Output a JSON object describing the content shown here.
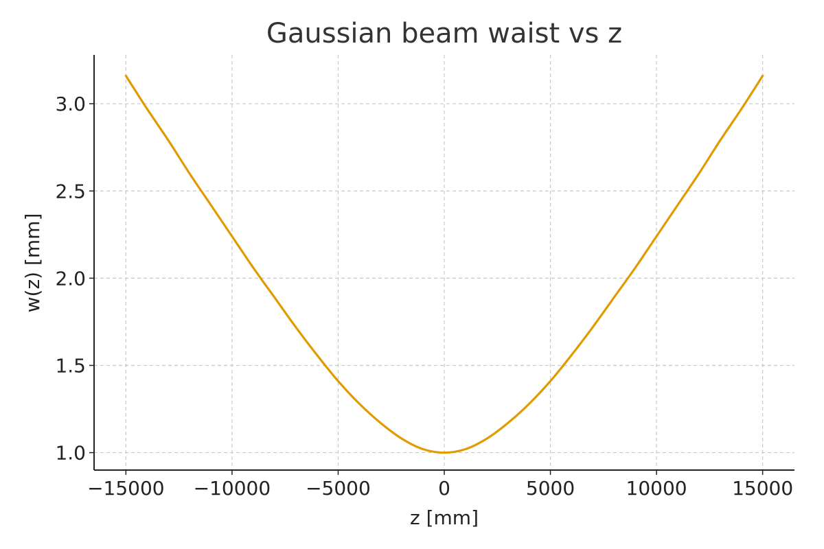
{
  "chart_data": {
    "type": "line",
    "title": "Gaussian beam waist vs z",
    "xlabel": "z [mm]",
    "ylabel": "w(z) [mm]",
    "xlim": [
      -16500,
      16500
    ],
    "ylim": [
      0.9,
      3.28
    ],
    "x_ticks": [
      -15000,
      -10000,
      -5000,
      0,
      5000,
      10000,
      15000
    ],
    "x_tick_labels": [
      "−15000",
      "−10000",
      "−5000",
      "0",
      "5000",
      "10000",
      "15000"
    ],
    "y_ticks": [
      1.0,
      1.5,
      2.0,
      2.5,
      3.0
    ],
    "y_tick_labels": [
      "1.0",
      "1.5",
      "2.0",
      "2.5",
      "3.0"
    ],
    "grid": true,
    "series": [
      {
        "color": "#e09b00",
        "x": [
          -15000,
          -14000,
          -13000,
          -12000,
          -11000,
          -10000,
          -9000,
          -8000,
          -7000,
          -6000,
          -5000,
          -4000,
          -3000,
          -2000,
          -1000,
          0,
          1000,
          2000,
          3000,
          4000,
          5000,
          6000,
          7000,
          8000,
          9000,
          10000,
          11000,
          12000,
          13000,
          14000,
          15000
        ],
        "y": [
          3.16,
          2.97,
          2.79,
          2.6,
          2.42,
          2.24,
          2.06,
          1.89,
          1.72,
          1.56,
          1.41,
          1.28,
          1.17,
          1.08,
          1.02,
          1.0,
          1.02,
          1.08,
          1.17,
          1.28,
          1.41,
          1.56,
          1.72,
          1.89,
          2.06,
          2.24,
          2.42,
          2.6,
          2.79,
          2.97,
          3.16
        ]
      }
    ]
  }
}
